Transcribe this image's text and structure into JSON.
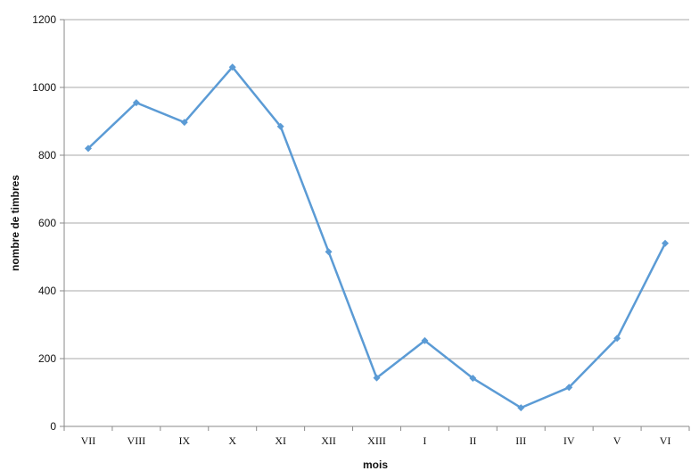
{
  "chart_data": {
    "type": "line",
    "title": "",
    "xlabel": "mois",
    "ylabel": "nombre de timbres",
    "categories": [
      "VII",
      "VIII",
      "IX",
      "X",
      "XI",
      "XII",
      "XIII",
      "I",
      "II",
      "III",
      "IV",
      "V",
      "VI"
    ],
    "series": [
      {
        "values": [
          820,
          955,
          897,
          1060,
          885,
          515,
          143,
          253,
          142,
          55,
          115,
          260,
          540
        ]
      }
    ],
    "ylim": [
      0,
      1200
    ],
    "yticks": [
      0,
      200,
      400,
      600,
      800,
      1000,
      1200
    ],
    "grid": true,
    "legend": "none",
    "colors": {
      "series": "#5b9bd5",
      "grid": "#a8a8a8",
      "axis": "#8a8a8a"
    }
  }
}
